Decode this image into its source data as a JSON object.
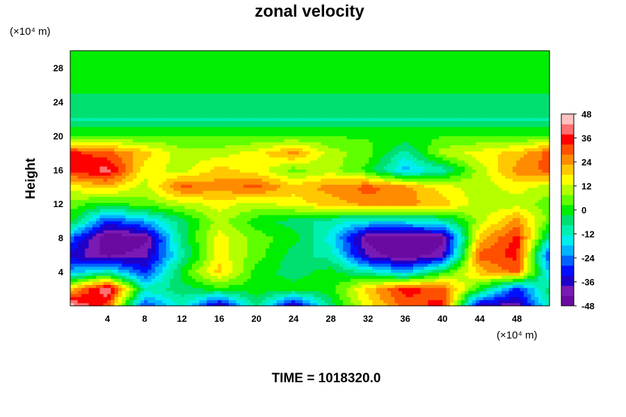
{
  "chart_data": {
    "type": "heatmap",
    "title": "zonal velocity",
    "ylabel": "Height",
    "xlabel": "",
    "x_unit": "(×10⁴ m)",
    "y_unit": "(×10⁴ m)",
    "xlim": [
      0,
      51.5
    ],
    "ylim": [
      0,
      30
    ],
    "x_ticks": [
      4,
      8,
      12,
      16,
      20,
      24,
      28,
      32,
      36,
      40,
      44,
      48
    ],
    "y_ticks": [
      4,
      8,
      12,
      16,
      20,
      24,
      28
    ],
    "colorbar": {
      "min": -48,
      "max": 48,
      "ticks": [
        48,
        36,
        24,
        12,
        0,
        -12,
        -24,
        -36,
        -48
      ],
      "colors": [
        "#6a0aa0",
        "#7a1ab4",
        "#1e00c8",
        "#0010ff",
        "#0064ff",
        "#00b4ff",
        "#00eeee",
        "#00f0b0",
        "#00e070",
        "#00ee00",
        "#60ff00",
        "#b4ff00",
        "#ffff00",
        "#ffc800",
        "#ff8c00",
        "#ff5000",
        "#ff0000",
        "#ff7070",
        "#ffc0c0"
      ]
    },
    "footer": "TIME = 1018320.0",
    "field_approx": {
      "x": [
        0,
        4,
        8,
        12,
        16,
        20,
        24,
        28,
        32,
        36,
        40,
        44,
        48,
        51.5
      ],
      "y": [
        0,
        2,
        4,
        6,
        8,
        10,
        12,
        14,
        16,
        18,
        20,
        22,
        24,
        26,
        28,
        30
      ],
      "values": [
        [
          46,
          30,
          -30,
          -10,
          -40,
          -5,
          -40,
          -5,
          15,
          30,
          35,
          -40,
          -40,
          -10
        ],
        [
          20,
          44,
          -10,
          -5,
          0,
          0,
          0,
          0,
          20,
          35,
          30,
          0,
          -30,
          -5
        ],
        [
          -20,
          -10,
          -30,
          0,
          20,
          0,
          -5,
          0,
          -10,
          -20,
          0,
          20,
          30,
          -20
        ],
        [
          -35,
          -45,
          -40,
          -10,
          15,
          5,
          -5,
          -10,
          -40,
          -48,
          -40,
          30,
          35,
          -30
        ],
        [
          -25,
          -48,
          -45,
          -5,
          15,
          5,
          0,
          -15,
          -45,
          -48,
          -45,
          20,
          35,
          -10
        ],
        [
          0,
          -30,
          -20,
          -5,
          10,
          0,
          -5,
          -10,
          -15,
          -15,
          -10,
          10,
          25,
          5
        ],
        [
          5,
          0,
          5,
          10,
          15,
          10,
          15,
          20,
          25,
          25,
          20,
          10,
          10,
          5
        ],
        [
          15,
          20,
          10,
          30,
          25,
          30,
          20,
          25,
          30,
          25,
          15,
          10,
          15,
          10
        ],
        [
          35,
          40,
          15,
          10,
          20,
          15,
          5,
          10,
          0,
          -20,
          -10,
          10,
          25,
          30
        ],
        [
          35,
          30,
          20,
          10,
          10,
          15,
          25,
          10,
          5,
          -10,
          10,
          15,
          20,
          30
        ],
        [
          2,
          2,
          2,
          2,
          2,
          2,
          2,
          2,
          2,
          2,
          2,
          2,
          2,
          2
        ],
        [
          -8,
          -8,
          -8,
          -8,
          -8,
          -8,
          -8,
          -8,
          -8,
          -8,
          -8,
          -8,
          -8,
          -8
        ],
        [
          -3,
          -3,
          -3,
          -3,
          -3,
          -3,
          -3,
          -3,
          -3,
          -3,
          -3,
          -3,
          -3,
          -3
        ],
        [
          -2,
          -2,
          -2,
          -2,
          -2,
          -2,
          -2,
          -2,
          -2,
          -2,
          -2,
          -2,
          -2,
          -2
        ],
        [
          -1,
          -1,
          -1,
          -1,
          -1,
          -1,
          -1,
          -1,
          -1,
          -1,
          -1,
          -1,
          -1,
          -1
        ],
        [
          -1,
          -1,
          -1,
          -1,
          -1,
          -1,
          -1,
          -1,
          -1,
          -1,
          -1,
          -1,
          -1,
          -1
        ]
      ]
    }
  }
}
